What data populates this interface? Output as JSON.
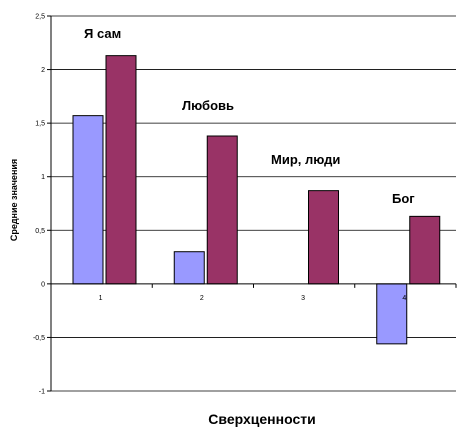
{
  "chart_data": {
    "type": "bar",
    "categories": [
      "1",
      "2",
      "3",
      "4"
    ],
    "series": [
      {
        "values": [
          1.57,
          0.3,
          null,
          -0.56
        ],
        "color": "#9999ff"
      },
      {
        "values": [
          2.13,
          1.38,
          0.87,
          0.63
        ],
        "color": "#993366"
      }
    ],
    "annotations": [
      "Я сам",
      "Любовь",
      "Мир, люди",
      "Бог"
    ],
    "xlabel": "Сверхценности",
    "ylabel": "Средние значения",
    "ylim": [
      -1,
      2.5
    ],
    "yticks": [
      "-1",
      "-0,5",
      "0",
      "0,5",
      "1",
      "1,5",
      "2",
      "2,5"
    ],
    "ytick_values": [
      -1,
      -0.5,
      0,
      0.5,
      1,
      1.5,
      2,
      2.5
    ],
    "grid": true,
    "legend": "none"
  }
}
